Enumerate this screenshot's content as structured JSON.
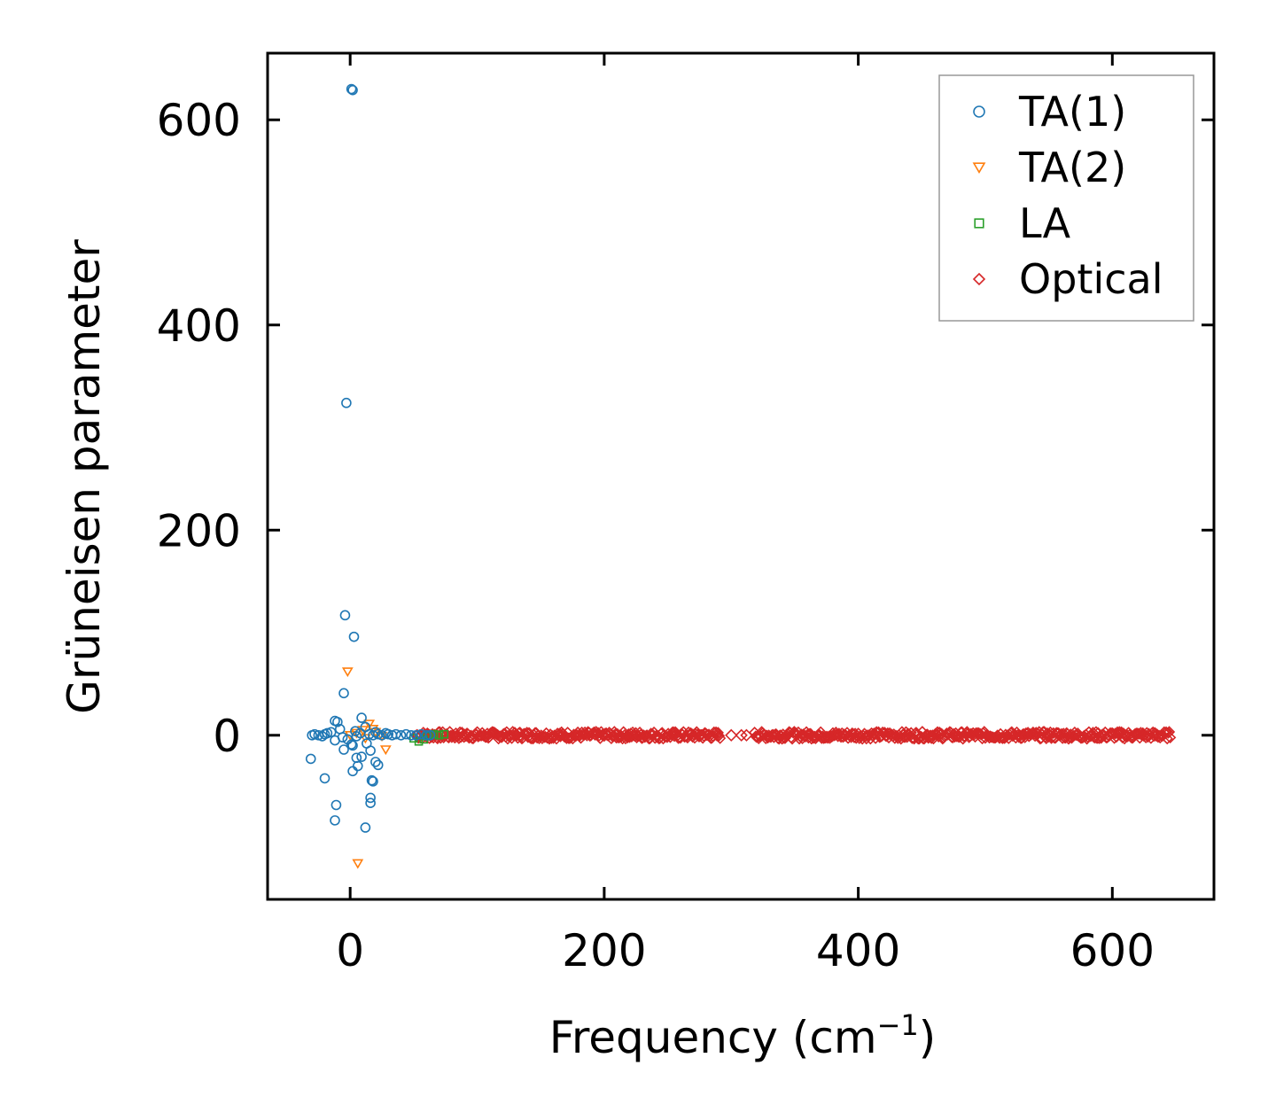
{
  "chart_data": {
    "type": "scatter",
    "title": "",
    "xlabel": "Frequency (cm",
    "xlabel_sup": "−1",
    "xlabel_tail": ")",
    "ylabel": "Grüneisen parameter",
    "xlim": [
      -65,
      680
    ],
    "ylim": [
      -160,
      665
    ],
    "xticks": [
      0,
      200,
      400,
      600
    ],
    "yticks": [
      0,
      200,
      400,
      600
    ],
    "xtick_labels": [
      "0",
      "200",
      "400",
      "600"
    ],
    "ytick_labels": [
      "0",
      "200",
      "400",
      "600"
    ],
    "grid": false,
    "legend_position": "top-right",
    "series": [
      {
        "name": "TA(1)",
        "marker": "circle",
        "color": "#1f77b4",
        "points": [
          [
            1,
            630
          ],
          [
            2,
            629
          ],
          [
            -3,
            324
          ],
          [
            -4,
            117
          ],
          [
            3,
            96
          ],
          [
            -5,
            41
          ],
          [
            -12,
            14
          ],
          [
            -10,
            13
          ],
          [
            9,
            17
          ],
          [
            12,
            8
          ],
          [
            -8,
            6
          ],
          [
            -15,
            3
          ],
          [
            -20,
            1
          ],
          [
            -25,
            0
          ],
          [
            -30,
            0
          ],
          [
            -28,
            1
          ],
          [
            -22,
            -1
          ],
          [
            -18,
            2
          ],
          [
            -6,
            -2
          ],
          [
            -2,
            -4
          ],
          [
            5,
            -1
          ],
          [
            8,
            2
          ],
          [
            15,
            1
          ],
          [
            18,
            0
          ],
          [
            20,
            3
          ],
          [
            22,
            1
          ],
          [
            25,
            0
          ],
          [
            28,
            2
          ],
          [
            30,
            1
          ],
          [
            33,
            0
          ],
          [
            36,
            1
          ],
          [
            40,
            0
          ],
          [
            44,
            1
          ],
          [
            48,
            0
          ],
          [
            52,
            0
          ],
          [
            56,
            1
          ],
          [
            60,
            0
          ],
          [
            63,
            0
          ],
          [
            -31,
            -23
          ],
          [
            -20,
            -42
          ],
          [
            -12,
            -5
          ],
          [
            -5,
            -14
          ],
          [
            2,
            -10
          ],
          [
            5,
            -22
          ],
          [
            9,
            -21
          ],
          [
            13,
            -8
          ],
          [
            16,
            -15
          ],
          [
            20,
            -26
          ],
          [
            22,
            -29
          ],
          [
            6,
            -30
          ],
          [
            2,
            -35
          ],
          [
            17,
            -44
          ],
          [
            18,
            -45
          ],
          [
            16,
            -61
          ],
          [
            16,
            -66
          ],
          [
            -11,
            -68
          ],
          [
            -12,
            -83
          ],
          [
            12,
            -90
          ],
          [
            1,
            -9
          ],
          [
            4,
            4
          ]
        ]
      },
      {
        "name": "TA(2)",
        "marker": "triangle-down",
        "color": "#ff7f0e",
        "points": [
          [
            -2,
            62
          ],
          [
            15,
            11
          ],
          [
            10,
            5
          ],
          [
            0,
            0
          ],
          [
            5,
            2
          ],
          [
            20,
            3
          ],
          [
            25,
            -1
          ],
          [
            28,
            -14
          ],
          [
            18,
            6
          ],
          [
            12,
            -3
          ],
          [
            6,
            -125
          ]
        ]
      },
      {
        "name": "LA",
        "marker": "square",
        "color": "#2ca02c",
        "points": [
          [
            50,
            -3
          ],
          [
            54,
            -6
          ],
          [
            58,
            -4
          ],
          [
            62,
            0
          ],
          [
            66,
            1
          ],
          [
            70,
            0
          ],
          [
            74,
            1
          ],
          [
            60,
            -1
          ]
        ]
      },
      {
        "name": "Optical",
        "marker": "diamond",
        "color": "#d62728",
        "x_range": [
          52,
          646
        ],
        "y_value": 0,
        "y_spread": 3.5,
        "gap": [
          292,
          318
        ],
        "isolated_points": [
          [
            300,
            0
          ],
          [
            308,
            0
          ],
          [
            312,
            0
          ]
        ]
      }
    ]
  }
}
